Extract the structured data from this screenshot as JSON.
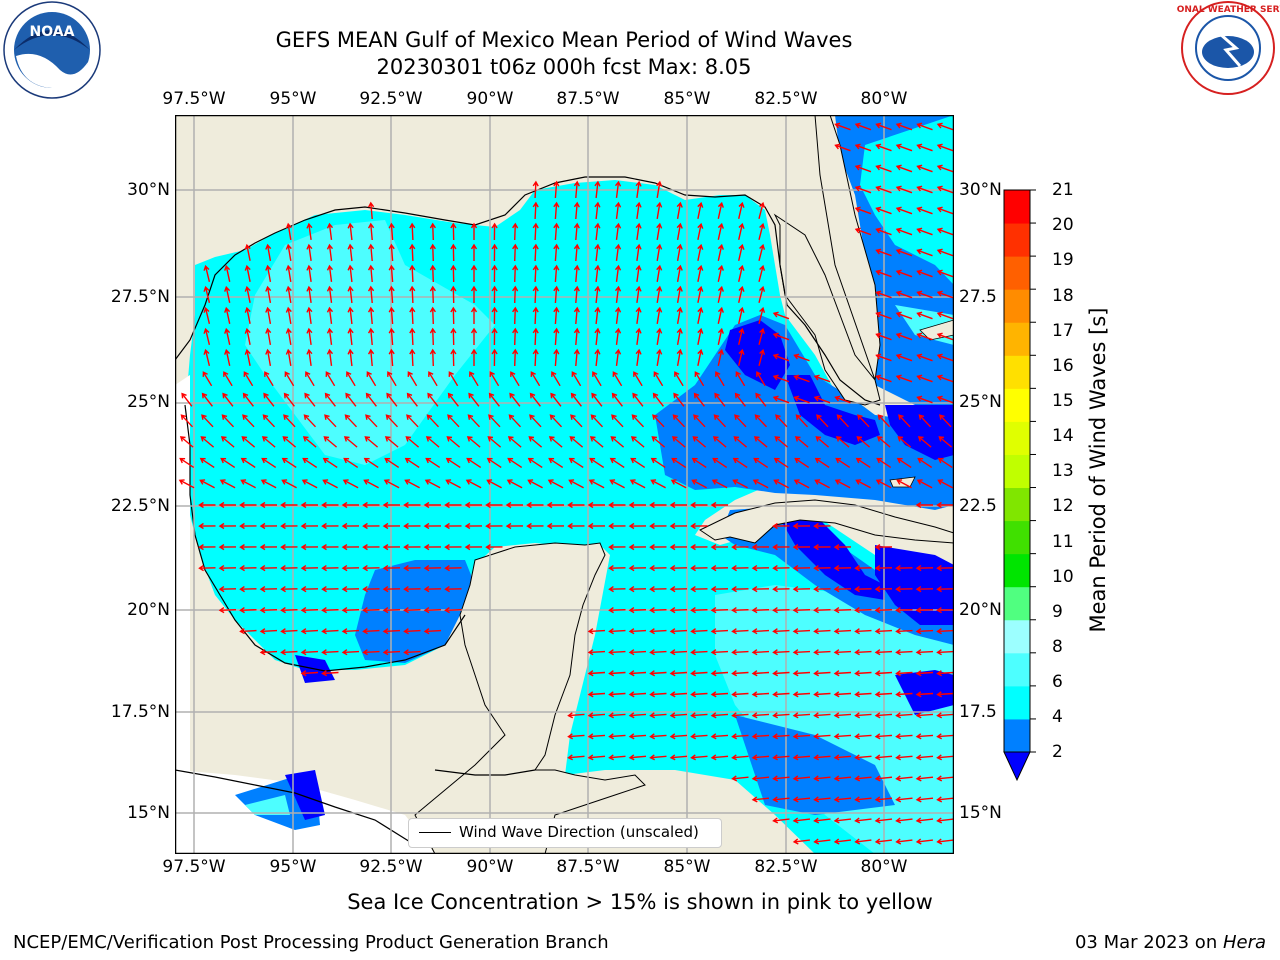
{
  "title": {
    "line1": "GEFS MEAN Gulf of Mexico Mean Period of Wind Waves",
    "line2": "20230301 t06z 000h fcst   Max: 8.05"
  },
  "map": {
    "lon_labels": [
      "97.5°W",
      "95°W",
      "92.5°W",
      "90°W",
      "87.5°W",
      "85°W",
      "82.5°W",
      "80°W"
    ],
    "lat_labels": [
      "30°N",
      "27.5°N",
      "25°N",
      "22.5°N",
      "20°N",
      "17.5°N",
      "15°N"
    ],
    "lat_labels_right": [
      "30°N",
      "27.5",
      "25°N",
      "22.5",
      "20°N",
      "17.5",
      "15°N"
    ],
    "legend_label": "Wind Wave Direction (unscaled)",
    "colors": {
      "land": "#efecdc",
      "ocean_cyan": "#00ffff",
      "ocean_light": "#4dfeff",
      "ocean_blue": "#0080ff",
      "ocean_deep": "#0000ff",
      "arrow": "#ff0000",
      "grid": "#b0b0b0"
    }
  },
  "colorbar": {
    "label": "Mean Period of Wind Waves [s]",
    "ticks": [
      "21",
      "20",
      "19",
      "18",
      "17",
      "16",
      "15",
      "14",
      "13",
      "12",
      "11",
      "10",
      "9",
      "8",
      "6",
      "4",
      "2"
    ],
    "colors": [
      "#0080ff",
      "#00ffff",
      "#4dffff",
      "#9cffff",
      "#50ff80",
      "#00e500",
      "#40e000",
      "#80e600",
      "#c0ff00",
      "#e0ff00",
      "#ffff00",
      "#ffe000",
      "#ffb400",
      "#ff8c00",
      "#ff6000",
      "#ff3000",
      "#ff0000"
    ]
  },
  "ice_note": "Sea Ice Concentration > 15% is shown in pink to yellow",
  "footer": {
    "left": "NCEP/EMC/Verification Post Processing Product Generation Branch",
    "right_prefix": "03 Mar 2023 on ",
    "right_host": "Hera"
  },
  "logos": {
    "noaa": "NOAA",
    "nws": "NATIONAL WEATHER SERVICE"
  }
}
